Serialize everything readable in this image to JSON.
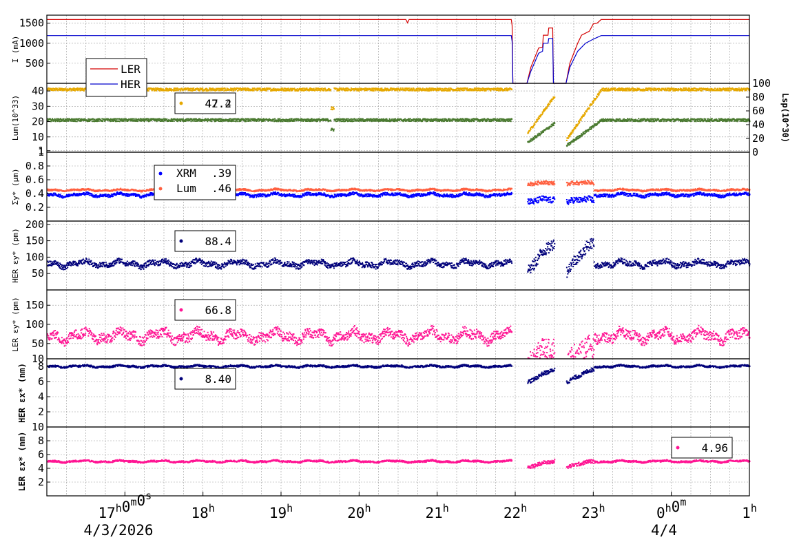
{
  "chart_data": [
    {
      "type": "line",
      "panel": "current",
      "ylabel": "I (mA)",
      "ylim": [
        0,
        1700
      ],
      "yticks": [
        500,
        1000,
        1500
      ],
      "legend": "left",
      "series": [
        {
          "name": "LER",
          "color": "#d40000",
          "points": [
            [
              16.0,
              1590
            ],
            [
              20.6,
              1590
            ],
            [
              20.62,
              1510
            ],
            [
              20.64,
              1590
            ],
            [
              21.95,
              1590
            ],
            [
              21.96,
              1440
            ],
            [
              21.97,
              0
            ],
            [
              22.15,
              0
            ],
            [
              22.2,
              400
            ],
            [
              22.3,
              880
            ],
            [
              22.35,
              900
            ],
            [
              22.36,
              1200
            ],
            [
              22.42,
              1200
            ],
            [
              22.43,
              1380
            ],
            [
              22.48,
              1380
            ],
            [
              22.49,
              0
            ],
            [
              22.65,
              0
            ],
            [
              22.7,
              500
            ],
            [
              22.8,
              1000
            ],
            [
              22.85,
              1200
            ],
            [
              22.95,
              1300
            ],
            [
              23.0,
              1480
            ],
            [
              23.05,
              1500
            ],
            [
              23.1,
              1590
            ],
            [
              1.0,
              1590
            ]
          ]
        },
        {
          "name": "HER",
          "color": "#0000cc",
          "points": [
            [
              16.0,
              1190
            ],
            [
              21.95,
              1190
            ],
            [
              21.96,
              1040
            ],
            [
              21.97,
              0
            ],
            [
              22.15,
              0
            ],
            [
              22.2,
              300
            ],
            [
              22.3,
              750
            ],
            [
              22.35,
              800
            ],
            [
              22.36,
              1000
            ],
            [
              22.42,
              1000
            ],
            [
              22.43,
              1120
            ],
            [
              22.48,
              1120
            ],
            [
              22.49,
              0
            ],
            [
              22.65,
              0
            ],
            [
              22.7,
              400
            ],
            [
              22.8,
              800
            ],
            [
              22.9,
              1000
            ],
            [
              23.0,
              1100
            ],
            [
              23.1,
              1190
            ],
            [
              1.0,
              1190
            ]
          ]
        }
      ]
    },
    {
      "type": "scatter",
      "panel": "luminosity",
      "ylabel": "Lum(10^33)",
      "ylabel_right": "Lsp(10^30)",
      "ylim": [
        0,
        45
      ],
      "yticks": [
        1,
        10,
        20,
        30,
        40
      ],
      "ylim_right": [
        0,
        100
      ],
      "yticks_right": [
        0,
        20,
        40,
        60,
        80,
        100
      ],
      "legend_value": "47.2",
      "legend_value_2": "42.4",
      "series": [
        {
          "name": "Lsp",
          "color": "#e6a800",
          "segments": [
            [
              16.0,
              21.95,
              41
            ],
            [
              22.15,
              22.5,
              30
            ],
            [
              22.65,
              1.0,
              41
            ]
          ],
          "dip": [
            19.65,
            28
          ]
        },
        {
          "name": "Lum",
          "color": "#4a7a30",
          "segments": [
            [
              16.0,
              21.95,
              21
            ],
            [
              22.15,
              22.5,
              18
            ],
            [
              22.65,
              1.0,
              21
            ]
          ],
          "dip": [
            19.65,
            15
          ]
        }
      ]
    },
    {
      "type": "scatter",
      "panel": "sigma",
      "ylabel": "Σy* (μm)",
      "ylim": [
        0,
        1.0
      ],
      "yticks": [
        0.2,
        0.4,
        0.6,
        0.8,
        1
      ],
      "legend_entries": [
        {
          "label": "XRM",
          "value": ".39",
          "color": "#0000ff"
        },
        {
          "label": "Lum",
          "value": ".46",
          "color": "#ff6040"
        }
      ],
      "series": [
        {
          "name": "XRM",
          "color": "#0000ff",
          "base": 0.38,
          "noise": 0.02
        },
        {
          "name": "Lum",
          "color": "#ff6040",
          "base": 0.45,
          "noise": 0.012
        }
      ]
    },
    {
      "type": "scatter",
      "panel": "her_ey",
      "ylabel": "HER εy* (pm)",
      "ylim": [
        0,
        210
      ],
      "yticks": [
        50,
        100,
        150,
        200
      ],
      "legend_value": "88.4",
      "series": [
        {
          "color": "#00007a",
          "base": 80,
          "noise": 8
        }
      ]
    },
    {
      "type": "scatter",
      "panel": "ler_ey",
      "ylabel": "LER εy* (pm)",
      "ylim": [
        10,
        190
      ],
      "yticks": [
        10,
        50,
        100,
        150
      ],
      "legend_value": "66.8",
      "series": [
        {
          "color": "#ff1493",
          "base": 70,
          "noise": 12
        }
      ]
    },
    {
      "type": "scatter",
      "panel": "her_ex",
      "ylabel": "HER εx* (nm)",
      "ylim": [
        0,
        9
      ],
      "yticks": [
        2,
        4,
        6,
        8
      ],
      "legend_value": "8.40",
      "series": [
        {
          "color": "#00007a",
          "base": 8.0,
          "noise": 0.12
        }
      ]
    },
    {
      "type": "scatter",
      "panel": "ler_ex",
      "ylabel": "LER εx* (nm)",
      "ylim": [
        0,
        10
      ],
      "yticks": [
        2,
        4,
        6,
        8,
        10
      ],
      "legend_value": "4.96",
      "series": [
        {
          "color": "#ff1493",
          "base": 5.0,
          "noise": 0.12
        }
      ]
    }
  ],
  "time_axis": {
    "ticks": [
      "17h0m0s",
      "18h",
      "19h",
      "20h",
      "21h",
      "22h",
      "23h",
      "0h0m",
      "1h"
    ],
    "date_left": "4/3/2026",
    "date_right": "4/4"
  }
}
